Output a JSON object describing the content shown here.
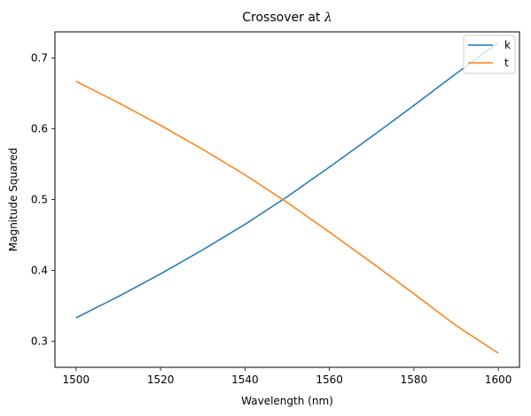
{
  "chart_data": {
    "type": "line",
    "title_prefix": "Crossover at ",
    "title_symbol": "λ",
    "xlabel": "Wavelength (nm)",
    "ylabel": "Magnitude Squared",
    "xlim": [
      1495,
      1605
    ],
    "ylim": [
      0.263,
      0.737
    ],
    "xticks": [
      1500,
      1520,
      1540,
      1560,
      1580,
      1600
    ],
    "yticks": [
      0.3,
      0.4,
      0.5,
      0.6,
      0.7
    ],
    "grid": false,
    "legend_position": "top-right",
    "x": [
      1500,
      1510,
      1520,
      1530,
      1540,
      1550,
      1560,
      1570,
      1580,
      1590,
      1600
    ],
    "series": [
      {
        "name": "k",
        "color": "#1f77b4",
        "values": [
          0.333,
          0.363,
          0.395,
          0.429,
          0.465,
          0.504,
          0.546,
          0.589,
          0.633,
          0.678,
          0.722
        ]
      },
      {
        "name": "t",
        "color": "#ff7f0e",
        "values": [
          0.667,
          0.637,
          0.605,
          0.571,
          0.535,
          0.496,
          0.454,
          0.411,
          0.367,
          0.322,
          0.283
        ]
      }
    ]
  }
}
